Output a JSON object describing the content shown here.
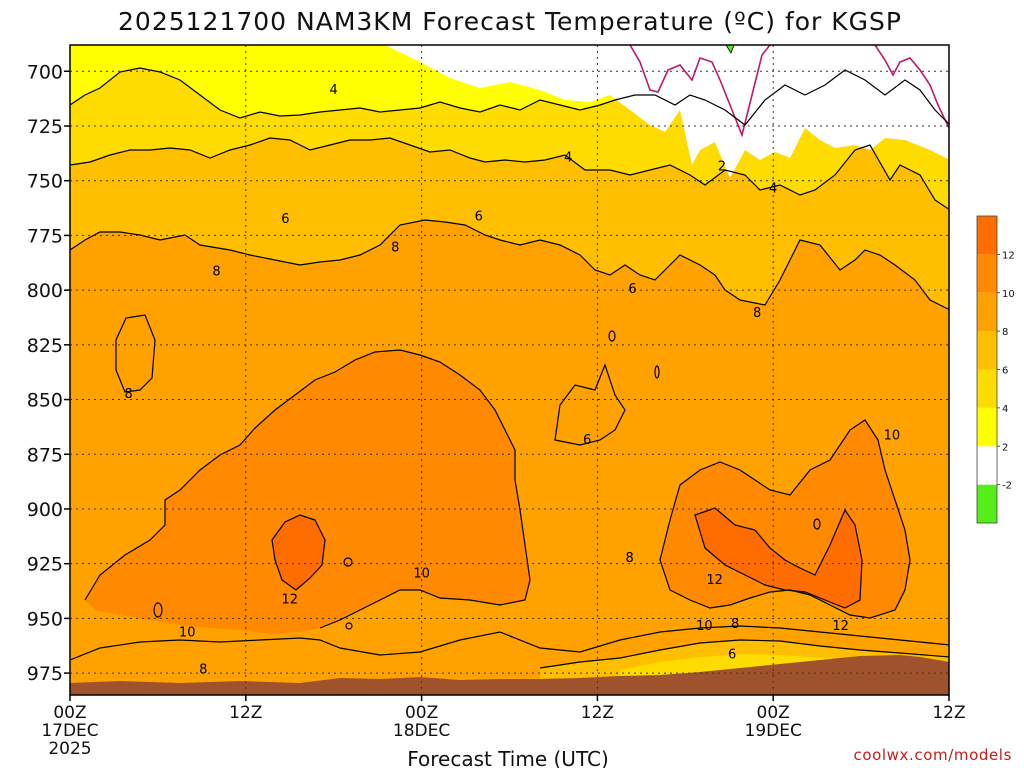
{
  "chart_data": {
    "type": "heatmap",
    "title": "2025121700 NAM3KM Forecast Temperature (ºC) for KGSP",
    "xlabel": "Forecast Time (UTC)",
    "ylabel": "",
    "x_ticks": [
      {
        "hour": 0,
        "lines": [
          "00Z",
          "17DEC",
          "2025"
        ]
      },
      {
        "hour": 12,
        "lines": [
          "12Z"
        ]
      },
      {
        "hour": 24,
        "lines": [
          "00Z",
          "18DEC"
        ]
      },
      {
        "hour": 36,
        "lines": [
          "12Z"
        ]
      },
      {
        "hour": 48,
        "lines": [
          "00Z",
          "19DEC"
        ]
      },
      {
        "hour": 60,
        "lines": [
          "12Z"
        ]
      }
    ],
    "xlim_hours": [
      0,
      60
    ],
    "y_ticks": [
      700,
      725,
      750,
      775,
      800,
      825,
      850,
      875,
      900,
      925,
      950,
      975
    ],
    "ylim_hpa": [
      688,
      985
    ],
    "y_scale": "pressure (inverted)",
    "grid": "dotted",
    "colorbar": {
      "ticks": [
        "-2",
        "2",
        "4",
        "6",
        "8",
        "10",
        "12"
      ],
      "levels": [
        {
          "from": -4,
          "to": -2,
          "color": "#55ee1a"
        },
        {
          "from": -2,
          "to": 2,
          "color": "#ffffff"
        },
        {
          "from": 2,
          "to": 4,
          "color": "#ffff00"
        },
        {
          "from": 4,
          "to": 6,
          "color": "#ffdc00"
        },
        {
          "from": 6,
          "to": 8,
          "color": "#ffbe00"
        },
        {
          "from": 8,
          "to": 10,
          "color": "#ffa200"
        },
        {
          "from": 10,
          "to": 12,
          "color": "#ff8a00"
        },
        {
          "from": 12,
          "to": 14,
          "color": "#ff6c00"
        }
      ]
    },
    "contour_labels": [
      {
        "text": "4",
        "hour": 18,
        "hpa": 708
      },
      {
        "text": "4",
        "hour": 34,
        "hpa": 739
      },
      {
        "text": "2",
        "hour": 44.5,
        "hpa": 743
      },
      {
        "text": "4",
        "hour": 48,
        "hpa": 753
      },
      {
        "text": "6",
        "hour": 14.7,
        "hpa": 767
      },
      {
        "text": "6",
        "hour": 27.9,
        "hpa": 766
      },
      {
        "text": "8",
        "hour": 22.2,
        "hpa": 780
      },
      {
        "text": "8",
        "hour": 10,
        "hpa": 791
      },
      {
        "text": "6",
        "hour": 38.4,
        "hpa": 799
      },
      {
        "text": "8",
        "hour": 46.9,
        "hpa": 810
      },
      {
        "text": "8",
        "hour": 4,
        "hpa": 847
      },
      {
        "text": "6",
        "hour": 35.3,
        "hpa": 868
      },
      {
        "text": "10",
        "hour": 56.1,
        "hpa": 866
      },
      {
        "text": "8",
        "hour": 38.2,
        "hpa": 922
      },
      {
        "text": "10",
        "hour": 24,
        "hpa": 929
      },
      {
        "text": "12",
        "hour": 44,
        "hpa": 932
      },
      {
        "text": "12",
        "hour": 15,
        "hpa": 941
      },
      {
        "text": "10",
        "hour": 43.3,
        "hpa": 953
      },
      {
        "text": "8",
        "hour": 45.4,
        "hpa": 952
      },
      {
        "text": "12",
        "hour": 52.6,
        "hpa": 953
      },
      {
        "text": "10",
        "hour": 8,
        "hpa": 956
      },
      {
        "text": "6",
        "hour": 45.2,
        "hpa": 966
      },
      {
        "text": "8",
        "hour": 9.1,
        "hpa": 973
      }
    ],
    "terrain_color": "#a0522d"
  },
  "credit": "coolwx.com/models"
}
